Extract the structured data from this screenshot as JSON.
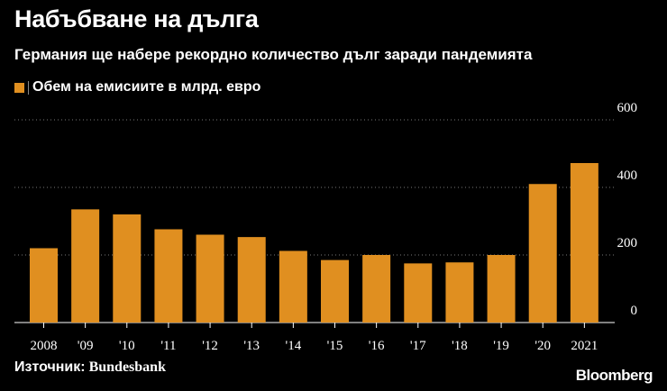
{
  "title": "Набъбване на дълга",
  "subtitle": "Германия ще набере рекордно количество дълг заради пандемията",
  "source": {
    "label": "Източник:",
    "name": "Bundesbank"
  },
  "brand": "Bloomberg",
  "colors": {
    "bar": "#e08f20",
    "background": "#000000",
    "grid": "#777777",
    "text": "#ffffff"
  },
  "chart_data": {
    "type": "bar",
    "categories": [
      "2008",
      "'09",
      "'10",
      "'11",
      "'12",
      "'13",
      "'14",
      "'15",
      "'16",
      "'17",
      "'18",
      "'19",
      "'20",
      "2021"
    ],
    "series": [
      {
        "name": "Обем на емисиите в млрд. евро",
        "values": [
          220,
          335,
          320,
          276,
          260,
          253,
          212,
          185,
          200,
          175,
          178,
          200,
          410,
          472
        ]
      }
    ],
    "ylim": [
      0,
      600
    ],
    "yticks": [
      0,
      200,
      400,
      600
    ],
    "grid": true,
    "y_axis_position": "right",
    "legend_position": "top-left"
  }
}
